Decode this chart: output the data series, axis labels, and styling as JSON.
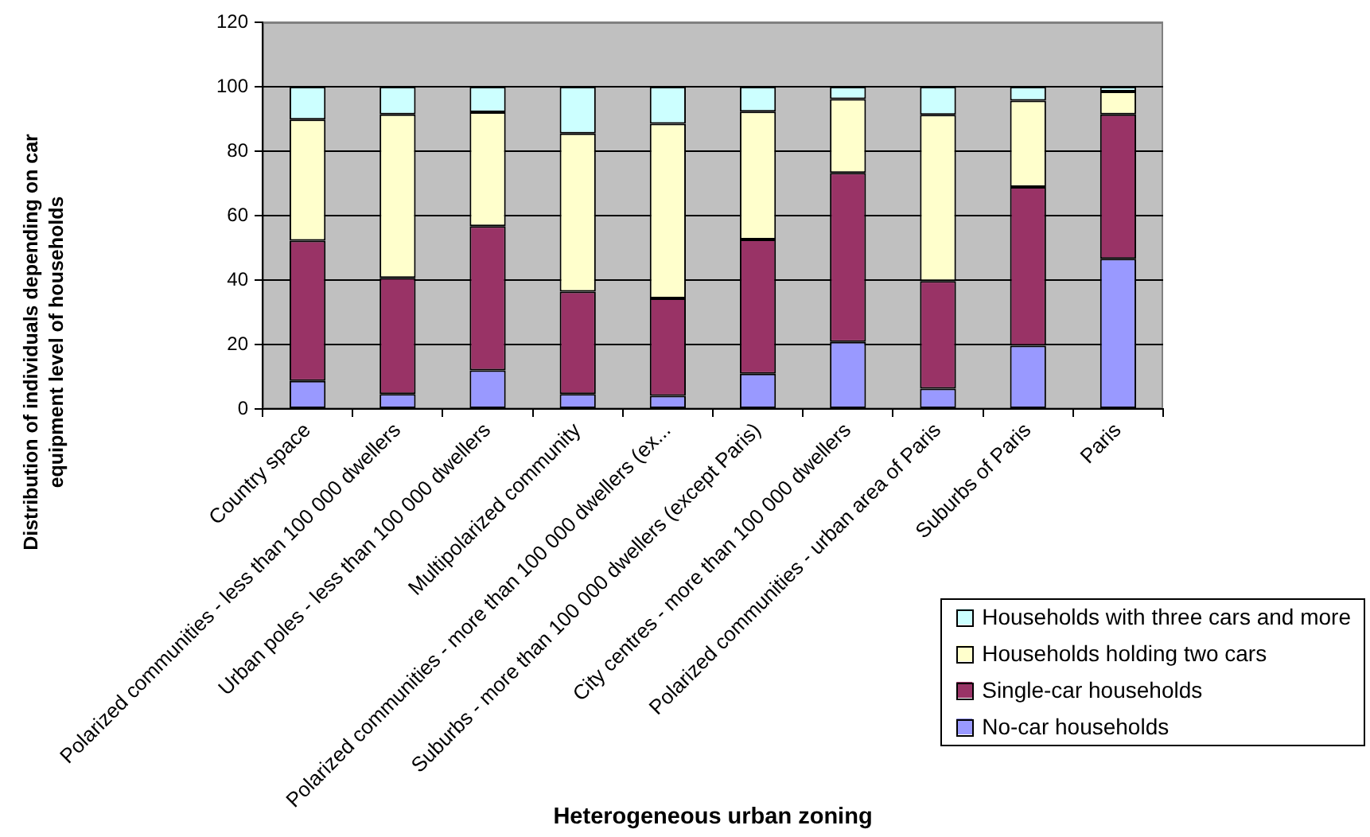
{
  "chart_data": {
    "type": "bar",
    "xlabel": "Heterogeneous urban zoning",
    "ylabel": "Distribution of individuals depending on car equipment level of households",
    "categories": [
      "Country space",
      "Polarized communities - less than 100 000 dwellers",
      "Urban poles - less than 100 000 dwellers",
      "Multipolarized community",
      "Polarized communities - more than 100 000 dwellers (ex...",
      "Suburbs - more than 100 000 dwellers (except Paris)",
      "City centres - more than 100 000 dwellers",
      "Polarized communities - urban area of Paris",
      "Suburbs of Paris",
      "Paris"
    ],
    "series": [
      {
        "name": "No-car households",
        "color": "#9999ff",
        "values": [
          8.7,
          4.6,
          12.0,
          4.6,
          4.1,
          10.9,
          20.8,
          6.3,
          19.6,
          46.6
        ]
      },
      {
        "name": "Single-car households",
        "color": "#993366",
        "values": [
          43.5,
          36.1,
          44.7,
          31.8,
          30.2,
          41.7,
          52.5,
          33.4,
          49.3,
          44.8
        ]
      },
      {
        "name": "Households holding two cars",
        "color": "#ffffcc",
        "values": [
          37.6,
          50.7,
          35.4,
          49.1,
          54.2,
          39.7,
          22.9,
          51.6,
          26.8,
          7.1
        ]
      },
      {
        "name": "Households with three cars and more",
        "color": "#ccffff",
        "values": [
          10.2,
          8.6,
          7.9,
          14.5,
          11.5,
          7.7,
          3.8,
          8.7,
          4.3,
          1.5
        ]
      }
    ],
    "stacked": true,
    "ylim": [
      0,
      120
    ],
    "yticks": [
      0,
      20,
      40,
      60,
      80,
      100,
      120
    ],
    "grid": "y",
    "legend": "bottom right"
  }
}
